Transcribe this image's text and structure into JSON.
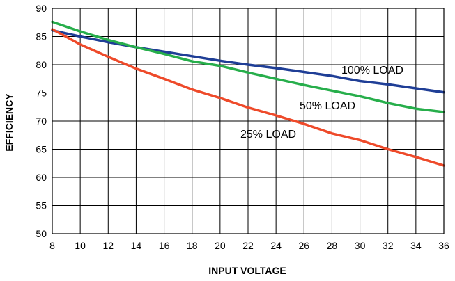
{
  "chart_data": {
    "type": "line",
    "xlabel": "INPUT VOLTAGE",
    "ylabel": "EFFICIENCY",
    "xlim": [
      8,
      36
    ],
    "ylim": [
      50,
      90
    ],
    "xticks": [
      8,
      10,
      12,
      14,
      16,
      18,
      20,
      22,
      24,
      26,
      28,
      30,
      32,
      34,
      36
    ],
    "yticks": [
      50,
      55,
      60,
      65,
      70,
      75,
      80,
      85,
      90
    ],
    "grid": true,
    "series": [
      {
        "name": "100% LOAD",
        "color": "#1f3e96",
        "x": [
          8,
          10,
          12,
          14,
          16,
          18,
          20,
          22,
          24,
          26,
          28,
          30,
          32,
          34,
          36
        ],
        "y": [
          86.1,
          85.0,
          84.0,
          83.1,
          82.3,
          81.5,
          80.7,
          80.0,
          79.4,
          78.7,
          78.0,
          77.1,
          76.5,
          75.8,
          75.1
        ]
      },
      {
        "name": "50% LOAD",
        "color": "#27ae4b",
        "x": [
          8,
          10,
          12,
          14,
          16,
          18,
          20,
          22,
          24,
          26,
          28,
          30,
          32,
          34,
          36
        ],
        "y": [
          87.6,
          85.9,
          84.4,
          83.1,
          81.9,
          80.6,
          79.8,
          78.6,
          77.5,
          76.4,
          75.4,
          74.4,
          73.2,
          72.2,
          71.6
        ]
      },
      {
        "name": "25% LOAD",
        "color": "#ee4a2a",
        "x": [
          8,
          10,
          12,
          14,
          16,
          18,
          20,
          22,
          24,
          26,
          28,
          30,
          32,
          34,
          36
        ],
        "y": [
          86.3,
          83.6,
          81.4,
          79.3,
          77.5,
          75.6,
          74.1,
          72.4,
          71.0,
          69.5,
          67.8,
          66.6,
          65.0,
          63.6,
          62.1
        ]
      }
    ]
  }
}
